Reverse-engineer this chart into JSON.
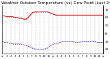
{
  "title": "Milwaukee Weather Outdoor Temperature (vs) Dew Point (Last 24 Hours)",
  "title_fontsize": 4.2,
  "bg_color": "#ffffff",
  "plot_bg_color": "#ffffff",
  "grid_color": "#888888",
  "temp_color": "#dd0000",
  "dew_color": "#0000cc",
  "temp_values": [
    62,
    62,
    61,
    61,
    61,
    61,
    60,
    60,
    59,
    59,
    58,
    58,
    60,
    63,
    66,
    67,
    67,
    67,
    67,
    67,
    67,
    67,
    66,
    65,
    64,
    63,
    63,
    63,
    63,
    63,
    63,
    63,
    63,
    63,
    63,
    63,
    63,
    63,
    63,
    63,
    63,
    63,
    63,
    63,
    63,
    63,
    63,
    63
  ],
  "dew_values": [
    30,
    29,
    29,
    28,
    28,
    27,
    27,
    27,
    27,
    27,
    26,
    25,
    24,
    23,
    22,
    21,
    20,
    20,
    20,
    20,
    21,
    22,
    24,
    26,
    27,
    28,
    28,
    29,
    30,
    30,
    30,
    30,
    30,
    30,
    29,
    29,
    29,
    30,
    30,
    30,
    30,
    30,
    30,
    30,
    29,
    29,
    29,
    29
  ],
  "ylim": [
    15,
    75
  ],
  "ytick_positions": [
    20,
    25,
    30,
    35,
    40,
    45,
    50,
    55,
    60,
    65,
    70
  ],
  "ytick_labels": [
    "20",
    "",
    "30",
    "",
    "40",
    "",
    "50",
    "",
    "60",
    "",
    "70"
  ],
  "ylabel_fontsize": 3.2,
  "xlabel_fontsize": 2.8,
  "xtick_labels": [
    "a",
    "1",
    "2",
    "3",
    "4",
    "5",
    "6",
    "7",
    "8",
    "9",
    "10",
    "11",
    "p",
    "1",
    "2",
    "3",
    "4",
    "5",
    "6",
    "7",
    "8",
    "9",
    "10",
    "11",
    "a"
  ],
  "figsize": [
    1.6,
    0.87
  ],
  "dpi": 100,
  "linewidth_temp": 0.7,
  "linewidth_dew": 0.5,
  "markersize_temp": 0.9,
  "markersize_dew": 0.9
}
